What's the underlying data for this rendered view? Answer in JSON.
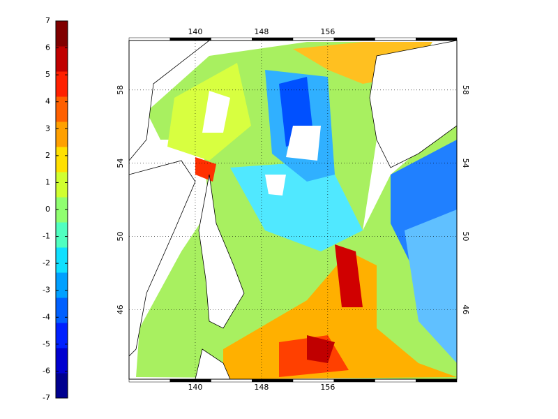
{
  "colorbar": {
    "lim": [
      -7,
      7
    ],
    "ticks": [
      -7,
      -6,
      -5,
      -4,
      -3,
      -2,
      -1,
      0,
      1,
      2,
      3,
      4,
      5,
      6,
      7
    ],
    "colors": [
      "#00008f",
      "#0000d0",
      "#0020ff",
      "#0060ff",
      "#00a0ff",
      "#10e0ff",
      "#50ffc0",
      "#90ff70",
      "#d0ff30",
      "#ffe000",
      "#ffa000",
      "#ff6000",
      "#ff2000",
      "#c00000",
      "#800000"
    ]
  },
  "map": {
    "xlim": [
      132,
      171.6
    ],
    "ylim": [
      42.2,
      60.7
    ],
    "xticks": [
      140,
      148,
      156
    ],
    "yticks": [
      46,
      50,
      54,
      58
    ],
    "grid": true
  }
}
